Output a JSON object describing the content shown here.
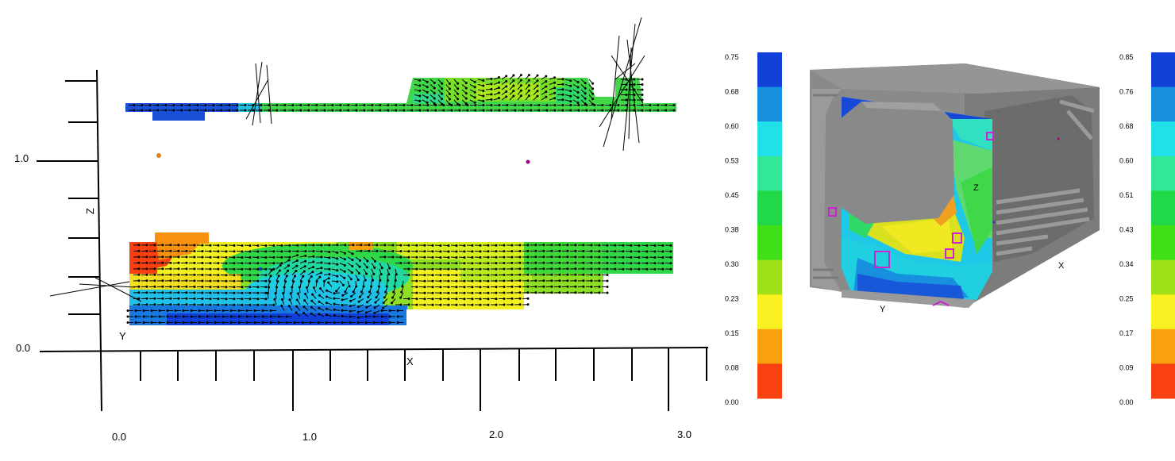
{
  "left_view": {
    "axis_labels": {
      "z": "Z",
      "x": "X",
      "y": "Y"
    },
    "x_ticks": [
      "0.0",
      "1.0",
      "2.0",
      "3.0"
    ],
    "z_ticks": [
      "0.0",
      "1.0"
    ]
  },
  "right_view": {
    "axis_labels": {
      "z": "Z",
      "x": "X",
      "y": "Y"
    }
  },
  "colorbar_left": {
    "labels": [
      "0.75",
      "0.68",
      "0.60",
      "0.53",
      "0.45",
      "0.38",
      "0.30",
      "0.23",
      "0.15",
      "0.08",
      "0.00"
    ]
  },
  "colorbar_right": {
    "labels": [
      "0.85",
      "0.76",
      "0.68",
      "0.60",
      "0.51",
      "0.43",
      "0.34",
      "0.25",
      "0.17",
      "0.09",
      "0.00"
    ]
  },
  "colormap": [
    "#1040d8",
    "#1890e0",
    "#20e0e8",
    "#30e898",
    "#20d848",
    "#40e018",
    "#a0e018",
    "#f8f020",
    "#f8a010",
    "#f84010"
  ]
}
